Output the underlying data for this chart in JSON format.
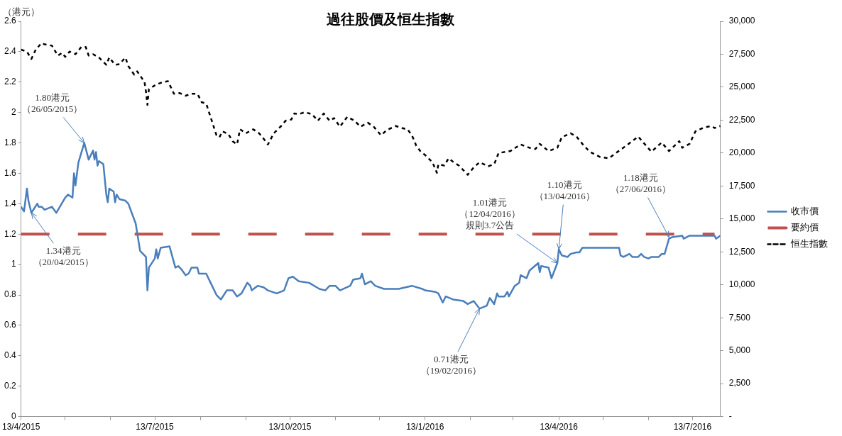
{
  "chart_data": {
    "type": "line",
    "title": "過往股價及恒生指數",
    "ylabel": "（港元）",
    "xlim": [
      "2015-04-13",
      "2016-08-01"
    ],
    "xticks": [
      {
        "value": "2015-04-13",
        "label": "13/4/2015"
      },
      {
        "value": "2015-05-13",
        "label": null
      },
      {
        "value": "2015-06-13",
        "label": null
      },
      {
        "value": "2015-07-13",
        "label": "13/7/2015"
      },
      {
        "value": "2015-08-13",
        "label": null
      },
      {
        "value": "2015-09-13",
        "label": null
      },
      {
        "value": "2015-10-13",
        "label": "13/10/2015"
      },
      {
        "value": "2015-11-13",
        "label": null
      },
      {
        "value": "2015-12-13",
        "label": null
      },
      {
        "value": "2016-01-13",
        "label": "13/1/2016"
      },
      {
        "value": "2016-02-13",
        "label": null
      },
      {
        "value": "2016-03-13",
        "label": null
      },
      {
        "value": "2016-04-13",
        "label": "13/4/2016"
      },
      {
        "value": "2016-05-13",
        "label": null
      },
      {
        "value": "2016-06-13",
        "label": null
      },
      {
        "value": "2016-07-13",
        "label": "13/7/2016"
      }
    ],
    "ylim": [
      0,
      2.6
    ],
    "yticks": [
      0,
      0.2,
      0.4,
      0.6,
      0.8,
      1,
      1.2,
      1.4,
      1.6,
      1.8,
      2,
      2.2,
      2.4,
      2.6
    ],
    "y2lim": [
      0,
      30000
    ],
    "y2ticks": [
      {
        "value": 0,
        "label": "-"
      },
      {
        "value": 2500,
        "label": "2,500"
      },
      {
        "value": 5000,
        "label": "5,000"
      },
      {
        "value": 7500,
        "label": "7,500"
      },
      {
        "value": 10000,
        "label": "10,000"
      },
      {
        "value": 12500,
        "label": "12,500"
      },
      {
        "value": 15000,
        "label": "15,000"
      },
      {
        "value": 17500,
        "label": "17,500"
      },
      {
        "value": 20000,
        "label": "20,000"
      },
      {
        "value": 22500,
        "label": "22,500"
      },
      {
        "value": 25000,
        "label": "25,000"
      },
      {
        "value": 27500,
        "label": "27,500"
      },
      {
        "value": 30000,
        "label": "30,000"
      }
    ],
    "grid": false,
    "legend": "right",
    "marker": "none",
    "series": [
      {
        "name": "收市價",
        "color": "#4a7ebb",
        "line_style": "solid",
        "axis": "y",
        "x": [
          "2015-04-13",
          "2015-04-15",
          "2015-04-17",
          "2015-04-18",
          "2015-04-20",
          "2015-04-24",
          "2015-04-25",
          "2015-04-27",
          "2015-04-29",
          "2015-05-04",
          "2015-05-07",
          "2015-05-13",
          "2015-05-15",
          "2015-05-18",
          "2015-05-19",
          "2015-05-20",
          "2015-05-22",
          "2015-05-26",
          "2015-05-29",
          "2015-06-01",
          "2015-06-02",
          "2015-06-03",
          "2015-06-04",
          "2015-06-05",
          "2015-06-08",
          "2015-06-10",
          "2015-06-11",
          "2015-06-12",
          "2015-06-15",
          "2015-06-16",
          "2015-06-17",
          "2015-06-19",
          "2015-06-23",
          "2015-06-25",
          "2015-06-30",
          "2015-07-03",
          "2015-07-07",
          "2015-07-08",
          "2015-07-09",
          "2015-07-13",
          "2015-07-14",
          "2015-07-15",
          "2015-07-17",
          "2015-07-23",
          "2015-07-27",
          "2015-07-29",
          "2015-07-31",
          "2015-08-03",
          "2015-08-05",
          "2015-08-07",
          "2015-08-11",
          "2015-08-12",
          "2015-08-17",
          "2015-08-20",
          "2015-08-24",
          "2015-08-26",
          "2015-08-27",
          "2015-08-31",
          "2015-09-04",
          "2015-09-07",
          "2015-09-10",
          "2015-09-14",
          "2015-09-16",
          "2015-09-17",
          "2015-09-21",
          "2015-09-25",
          "2015-09-28",
          "2015-10-04",
          "2015-10-09",
          "2015-10-12",
          "2015-10-15",
          "2015-10-19",
          "2015-10-26",
          "2015-11-02",
          "2015-11-06",
          "2015-11-09",
          "2015-11-13",
          "2015-11-16",
          "2015-11-23",
          "2015-11-25",
          "2015-11-30",
          "2015-12-01",
          "2015-12-03",
          "2015-12-07",
          "2015-12-10",
          "2015-12-16",
          "2015-12-21",
          "2015-12-26",
          "2016-01-04",
          "2016-01-11",
          "2016-01-13",
          "2016-01-20",
          "2016-01-22",
          "2016-01-25",
          "2016-01-27",
          "2016-02-01",
          "2016-02-08",
          "2016-02-11",
          "2016-02-15",
          "2016-02-19",
          "2016-02-24",
          "2016-02-26",
          "2016-02-29",
          "2016-03-02",
          "2016-03-03",
          "2016-03-07",
          "2016-03-09",
          "2016-03-10",
          "2016-03-14",
          "2016-03-17",
          "2016-03-18",
          "2016-03-22",
          "2016-03-24",
          "2016-03-30",
          "2016-03-31",
          "2016-04-01",
          "2016-04-06",
          "2016-04-08",
          "2016-04-12",
          "2016-04-13",
          "2016-04-15",
          "2016-04-19",
          "2016-04-21",
          "2016-04-25",
          "2016-04-27",
          "2016-04-29",
          "2016-05-24",
          "2016-05-25",
          "2016-05-27",
          "2016-05-31",
          "2016-06-02",
          "2016-06-06",
          "2016-06-08",
          "2016-06-10",
          "2016-06-13",
          "2016-06-15",
          "2016-06-20",
          "2016-06-22",
          "2016-06-24",
          "2016-06-27",
          "2016-06-29",
          "2016-07-06",
          "2016-07-07",
          "2016-07-11",
          "2016-07-28",
          "2016-07-29",
          "2016-08-01"
        ],
        "values": [
          1.38,
          1.35,
          1.5,
          1.42,
          1.34,
          1.4,
          1.38,
          1.38,
          1.36,
          1.38,
          1.34,
          1.44,
          1.46,
          1.44,
          1.6,
          1.52,
          1.67,
          1.8,
          1.69,
          1.75,
          1.69,
          1.74,
          1.65,
          1.68,
          1.66,
          1.46,
          1.41,
          1.5,
          1.48,
          1.41,
          1.46,
          1.43,
          1.42,
          1.4,
          1.27,
          1.09,
          1.05,
          0.83,
          0.98,
          1.04,
          1.1,
          1.04,
          1.11,
          1.12,
          0.98,
          0.99,
          0.97,
          0.93,
          0.94,
          0.98,
          0.98,
          0.94,
          0.94,
          0.88,
          0.8,
          0.78,
          0.77,
          0.83,
          0.83,
          0.79,
          0.81,
          0.88,
          0.86,
          0.83,
          0.86,
          0.85,
          0.83,
          0.81,
          0.83,
          0.91,
          0.92,
          0.89,
          0.88,
          0.84,
          0.83,
          0.86,
          0.86,
          0.83,
          0.86,
          0.9,
          0.91,
          0.94,
          0.87,
          0.89,
          0.86,
          0.84,
          0.84,
          0.84,
          0.86,
          0.84,
          0.83,
          0.82,
          0.81,
          0.75,
          0.79,
          0.77,
          0.76,
          0.74,
          0.76,
          0.71,
          0.73,
          0.78,
          0.74,
          0.81,
          0.79,
          0.79,
          0.82,
          0.79,
          0.86,
          0.88,
          0.93,
          0.91,
          0.96,
          1.01,
          0.95,
          0.99,
          0.98,
          0.91,
          1.01,
          1.1,
          1.06,
          1.05,
          1.07,
          1.08,
          1.08,
          1.11,
          1.11,
          1.06,
          1.05,
          1.07,
          1.05,
          1.05,
          1.07,
          1.05,
          1.04,
          1.05,
          1.05,
          1.07,
          1.07,
          1.17,
          1.18,
          1.19,
          1.17,
          1.19,
          1.19,
          1.17,
          1.19
        ]
      },
      {
        "name": "要約價",
        "color": "#c0504d",
        "line_style": "dashed",
        "axis": "y",
        "x": [
          "2015-04-13",
          "2016-07-28"
        ],
        "values": [
          1.2,
          1.2
        ]
      },
      {
        "name": "恒生指數",
        "color": "#000000",
        "line_style": "dotted",
        "axis": "y2",
        "x": [
          "2015-04-13",
          "2015-04-17",
          "2015-04-20",
          "2015-04-23",
          "2015-04-27",
          "2015-04-29",
          "2015-05-04",
          "2015-05-08",
          "2015-05-11",
          "2015-05-13",
          "2015-05-16",
          "2015-05-20",
          "2015-05-24",
          "2015-05-27",
          "2015-05-29",
          "2015-06-01",
          "2015-06-05",
          "2015-06-10",
          "2015-06-12",
          "2015-06-16",
          "2015-06-19",
          "2015-06-23",
          "2015-06-25",
          "2015-06-29",
          "2015-07-01",
          "2015-07-06",
          "2015-07-07",
          "2015-07-08",
          "2015-07-09",
          "2015-07-14",
          "2015-07-19",
          "2015-07-22",
          "2015-07-26",
          "2015-07-30",
          "2015-08-03",
          "2015-08-07",
          "2015-08-11",
          "2015-08-14",
          "2015-08-17",
          "2015-08-24",
          "2015-08-26",
          "2015-08-28",
          "2015-09-01",
          "2015-09-04",
          "2015-09-07",
          "2015-09-09",
          "2015-09-13",
          "2015-09-18",
          "2015-09-22",
          "2015-09-25",
          "2015-09-28",
          "2015-10-02",
          "2015-10-07",
          "2015-10-10",
          "2015-10-14",
          "2015-10-16",
          "2015-10-19",
          "2015-10-23",
          "2015-10-28",
          "2015-11-01",
          "2015-11-05",
          "2015-11-09",
          "2015-11-12",
          "2015-11-16",
          "2015-11-21",
          "2015-11-26",
          "2015-11-30",
          "2015-12-05",
          "2015-12-09",
          "2015-12-14",
          "2015-12-18",
          "2015-12-24",
          "2015-12-28",
          "2016-01-01",
          "2016-01-04",
          "2016-01-07",
          "2016-01-10",
          "2016-01-13",
          "2016-01-18",
          "2016-01-21",
          "2016-01-22",
          "2016-01-26",
          "2016-01-29",
          "2016-02-02",
          "2016-02-05",
          "2016-02-11",
          "2016-02-15",
          "2016-02-19",
          "2016-02-25",
          "2016-02-29",
          "2016-03-03",
          "2016-03-08",
          "2016-03-11",
          "2016-03-18",
          "2016-03-24",
          "2016-03-28",
          "2016-03-31",
          "2016-04-06",
          "2016-04-12",
          "2016-04-15",
          "2016-04-21",
          "2016-04-25",
          "2016-04-29",
          "2016-05-04",
          "2016-05-11",
          "2016-05-17",
          "2016-05-20",
          "2016-05-30",
          "2016-06-06",
          "2016-06-15",
          "2016-06-22",
          "2016-06-27",
          "2016-07-04",
          "2016-07-06",
          "2016-07-11",
          "2016-07-15",
          "2016-07-21",
          "2016-07-26",
          "2016-07-28",
          "2016-08-01"
        ],
        "values": [
          27850,
          27690,
          27140,
          27850,
          28350,
          28250,
          28150,
          27400,
          27600,
          27300,
          27700,
          27500,
          28050,
          28050,
          27400,
          27500,
          27250,
          26700,
          27250,
          26700,
          26750,
          27250,
          26600,
          25950,
          26200,
          25400,
          24650,
          23650,
          24850,
          25200,
          25400,
          25450,
          24500,
          24550,
          24350,
          24500,
          24500,
          23850,
          23750,
          21350,
          21200,
          21650,
          21450,
          20900,
          20650,
          21800,
          21500,
          21800,
          21500,
          21100,
          20650,
          21500,
          22050,
          22450,
          22550,
          23000,
          22950,
          23100,
          22950,
          22450,
          23000,
          22450,
          22650,
          22000,
          22750,
          22450,
          22000,
          22300,
          22000,
          21350,
          21750,
          22050,
          21900,
          21800,
          21350,
          20550,
          20100,
          19850,
          19300,
          18500,
          19150,
          19050,
          19600,
          19250,
          19050,
          18350,
          18900,
          19300,
          19000,
          19150,
          20000,
          20100,
          20150,
          20650,
          20400,
          20300,
          20700,
          20150,
          20400,
          21200,
          21500,
          21250,
          20700,
          20100,
          19700,
          19600,
          19850,
          20650,
          21250,
          20100,
          20800,
          20150,
          20900,
          20400,
          20700,
          21650,
          21950,
          22050,
          21900,
          22050
        ]
      }
    ],
    "annotations": [
      {
        "text": "1.80港元（26/05/2015）",
        "x": "2015-05-26",
        "y": 1.8
      },
      {
        "text": "1.34港元（20/04/2015）",
        "x": "2015-04-20",
        "y": 1.34
      },
      {
        "text": "0.71港元（19/02/2016）",
        "x": "2016-02-19",
        "y": 0.71
      },
      {
        "text": "1.01港元（12/04/2016）規則3.7公告",
        "x": "2016-04-12",
        "y": 1.01
      },
      {
        "text": "1.10港元（13/04/2016）",
        "x": "2016-04-13",
        "y": 1.1
      },
      {
        "text": "1.18港元（27/06/2016）",
        "x": "2016-06-27",
        "y": 1.18
      }
    ]
  }
}
